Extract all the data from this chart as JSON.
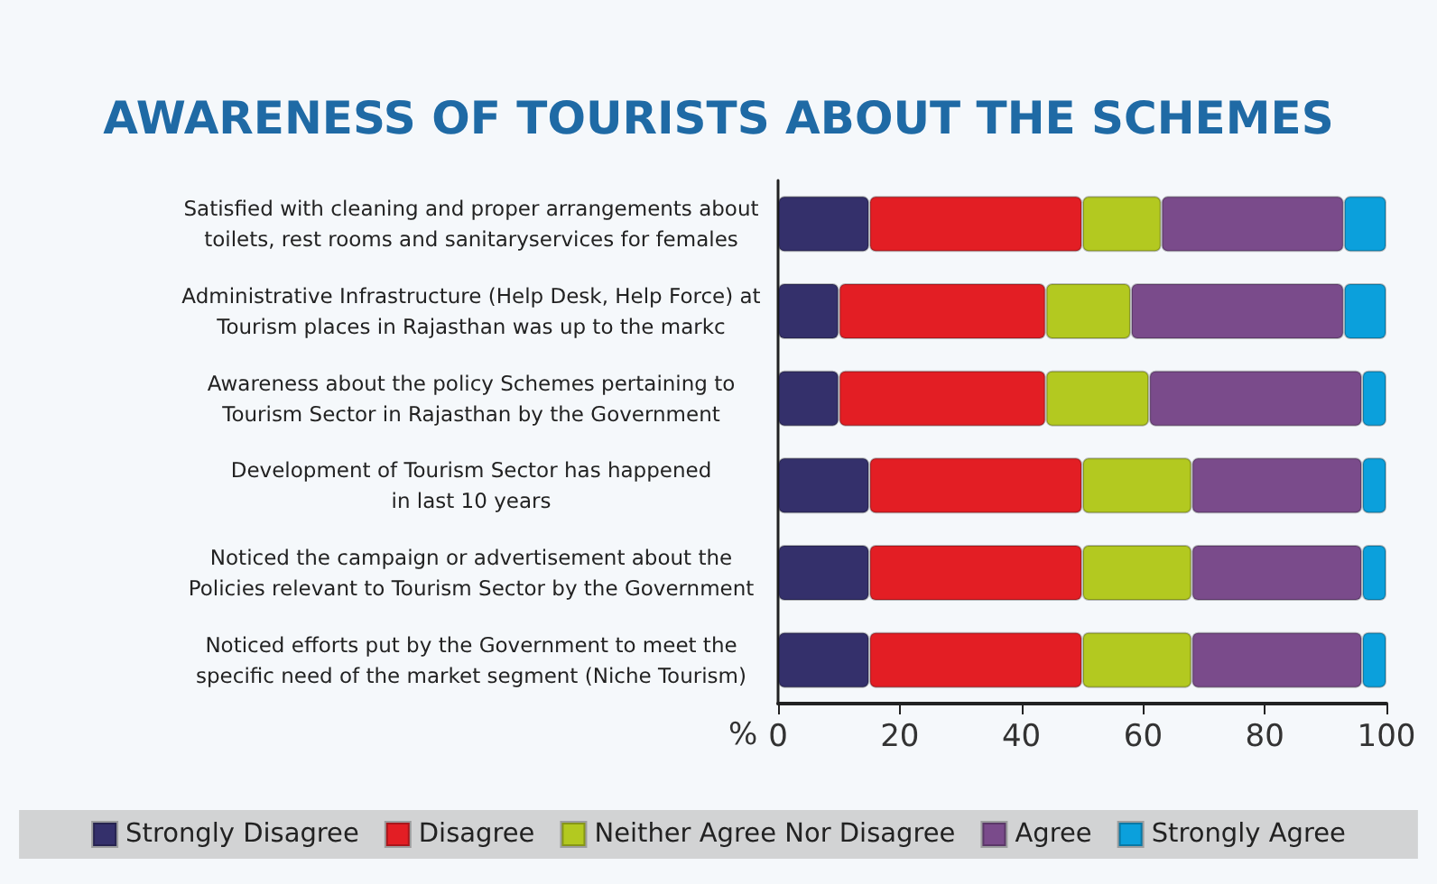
{
  "chart_data": {
    "type": "bar",
    "orientation": "horizontal",
    "stacked": true,
    "title": "AWARENESS OF TOURISTS ABOUT THE SCHEMES",
    "xlabel": "%",
    "categories": [
      "Satisfied with cleaning and proper arrangements about\ntoilets, rest rooms and sanitaryservices for females",
      "Administrative Infrastructure (Help Desk, Help Force) at\nTourism places in Rajasthan was up to the markc",
      "Awareness about the policy Schemes pertaining to\nTourism Sector in Rajasthan by the Government",
      "Development of Tourism Sector has happened\nin last 10 years",
      "Noticed the campaign or advertisement about the\nPolicies relevant to Tourism Sector by the Government",
      "Noticed efforts put by the Government to meet the\nspecific need of the market segment (Niche Tourism)"
    ],
    "series": [
      {
        "name": "Strongly Disagree",
        "color": "#34306b",
        "values": [
          15,
          10,
          10,
          15,
          15,
          15
        ]
      },
      {
        "name": "Disagree",
        "color": "#e31e24",
        "values": [
          35,
          34,
          34,
          35,
          35,
          35
        ]
      },
      {
        "name": "Neither Agree Nor Disagree",
        "color": "#b3c920",
        "values": [
          13,
          14,
          17,
          18,
          18,
          18
        ]
      },
      {
        "name": "Agree",
        "color": "#7a4b8b",
        "values": [
          30,
          35,
          35,
          28,
          28,
          28
        ]
      },
      {
        "name": "Strongly Agree",
        "color": "#0ba0dc",
        "values": [
          7,
          7,
          4,
          4,
          4,
          4
        ]
      }
    ],
    "xlim": [
      0,
      100
    ],
    "xticks": [
      0,
      20,
      40,
      60,
      80,
      100
    ],
    "grid": false,
    "legend": "bottom"
  }
}
